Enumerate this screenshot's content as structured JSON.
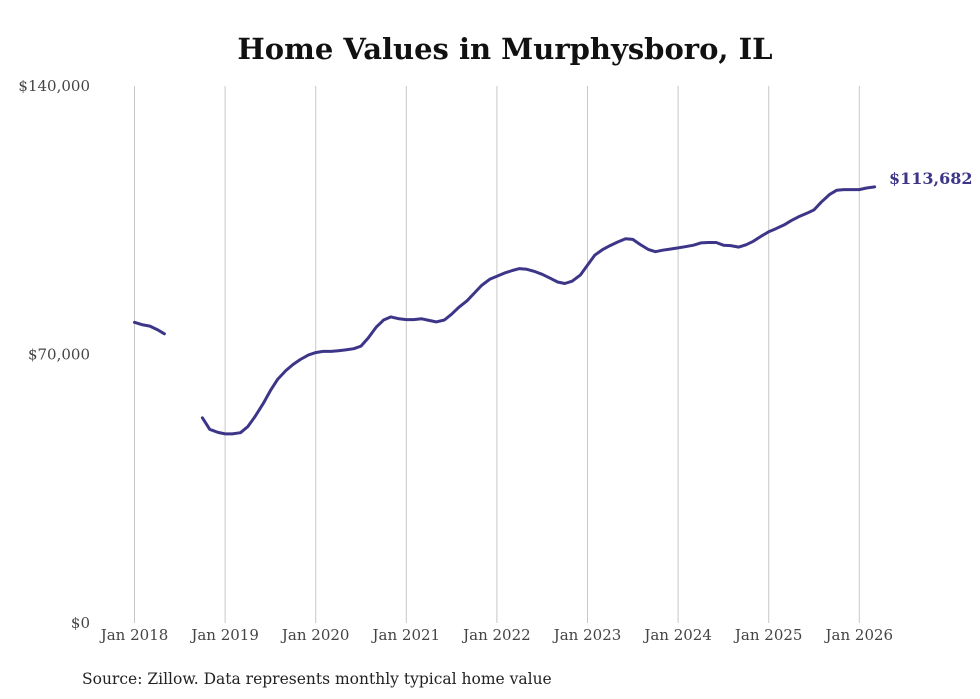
{
  "chart_data": {
    "type": "line",
    "title": "Home Values in Murphysboro, IL",
    "xlabel": "",
    "ylabel": "",
    "ylim": [
      0,
      140000
    ],
    "y_ticks": [
      {
        "value": 0,
        "label": "$0"
      },
      {
        "value": 70000,
        "label": "$70,000"
      },
      {
        "value": 140000,
        "label": "$140,000"
      }
    ],
    "x_ticks": [
      {
        "value": 2018.0,
        "label": "Jan 2018"
      },
      {
        "value": 2019.0,
        "label": "Jan 2019"
      },
      {
        "value": 2020.0,
        "label": "Jan 2020"
      },
      {
        "value": 2021.0,
        "label": "Jan 2021"
      },
      {
        "value": 2022.0,
        "label": "Jan 2022"
      },
      {
        "value": 2023.0,
        "label": "Jan 2023"
      },
      {
        "value": 2024.0,
        "label": "Jan 2024"
      },
      {
        "value": 2025.0,
        "label": "Jan 2025"
      },
      {
        "value": 2026.0,
        "label": "Jan 2026"
      }
    ],
    "xlim": [
      2018.0,
      2026.17
    ],
    "grid": "vertical",
    "series": [
      {
        "name": "Typical home value",
        "color": "#3d3688",
        "segments": [
          [
            [
              2018.0,
              78400
            ],
            [
              2018.08,
              77800
            ],
            [
              2018.17,
              77400
            ],
            [
              2018.25,
              76500
            ],
            [
              2018.33,
              75400
            ]
          ],
          [
            [
              2018.75,
              53500
            ],
            [
              2018.83,
              50500
            ],
            [
              2018.92,
              49700
            ],
            [
              2019.0,
              49300
            ],
            [
              2019.08,
              49300
            ],
            [
              2019.17,
              49600
            ],
            [
              2019.25,
              51200
            ],
            [
              2019.33,
              53800
            ],
            [
              2019.42,
              57200
            ],
            [
              2019.5,
              60600
            ],
            [
              2019.58,
              63500
            ],
            [
              2019.67,
              65800
            ],
            [
              2019.75,
              67400
            ],
            [
              2019.83,
              68700
            ],
            [
              2019.92,
              69900
            ],
            [
              2020.0,
              70500
            ],
            [
              2020.08,
              70800
            ],
            [
              2020.17,
              70800
            ],
            [
              2020.25,
              71000
            ],
            [
              2020.33,
              71200
            ],
            [
              2020.42,
              71500
            ],
            [
              2020.5,
              72200
            ],
            [
              2020.58,
              74300
            ],
            [
              2020.67,
              77200
            ],
            [
              2020.75,
              79000
            ],
            [
              2020.83,
              79800
            ],
            [
              2020.92,
              79300
            ],
            [
              2021.0,
              79100
            ],
            [
              2021.08,
              79100
            ],
            [
              2021.17,
              79300
            ],
            [
              2021.25,
              78900
            ],
            [
              2021.33,
              78500
            ],
            [
              2021.42,
              79000
            ],
            [
              2021.5,
              80500
            ],
            [
              2021.58,
              82300
            ],
            [
              2021.67,
              84000
            ],
            [
              2021.75,
              86000
            ],
            [
              2021.83,
              88000
            ],
            [
              2021.92,
              89600
            ],
            [
              2022.0,
              90400
            ],
            [
              2022.08,
              91200
            ],
            [
              2022.17,
              91900
            ],
            [
              2022.25,
              92400
            ],
            [
              2022.33,
              92200
            ],
            [
              2022.42,
              91600
            ],
            [
              2022.5,
              90900
            ],
            [
              2022.58,
              90000
            ],
            [
              2022.67,
              88900
            ],
            [
              2022.75,
              88500
            ],
            [
              2022.83,
              89100
            ],
            [
              2022.92,
              90700
            ],
            [
              2023.0,
              93300
            ],
            [
              2023.08,
              95900
            ],
            [
              2023.17,
              97400
            ],
            [
              2023.25,
              98400
            ],
            [
              2023.33,
              99300
            ],
            [
              2023.42,
              100200
            ],
            [
              2023.5,
              100000
            ],
            [
              2023.58,
              98700
            ],
            [
              2023.67,
              97400
            ],
            [
              2023.75,
              96800
            ],
            [
              2023.83,
              97200
            ],
            [
              2023.92,
              97500
            ],
            [
              2024.0,
              97800
            ],
            [
              2024.08,
              98100
            ],
            [
              2024.17,
              98500
            ],
            [
              2024.25,
              99100
            ],
            [
              2024.33,
              99200
            ],
            [
              2024.42,
              99200
            ],
            [
              2024.5,
              98500
            ],
            [
              2024.58,
              98400
            ],
            [
              2024.67,
              98000
            ],
            [
              2024.75,
              98600
            ],
            [
              2024.83,
              99500
            ],
            [
              2024.92,
              100900
            ],
            [
              2025.0,
              102000
            ],
            [
              2025.08,
              102800
            ],
            [
              2025.17,
              103800
            ],
            [
              2025.25,
              104900
            ],
            [
              2025.33,
              105900
            ],
            [
              2025.42,
              106800
            ],
            [
              2025.5,
              107700
            ],
            [
              2025.58,
              109700
            ],
            [
              2025.67,
              111700
            ],
            [
              2025.75,
              112800
            ],
            [
              2025.83,
              113000
            ],
            [
              2025.92,
              113000
            ],
            [
              2026.0,
              113000
            ],
            [
              2026.08,
              113400
            ],
            [
              2026.17,
              113682
            ]
          ]
        ],
        "end_label": "$113,682"
      }
    ]
  },
  "source_note": "Source: Zillow. Data represents monthly typical home value"
}
